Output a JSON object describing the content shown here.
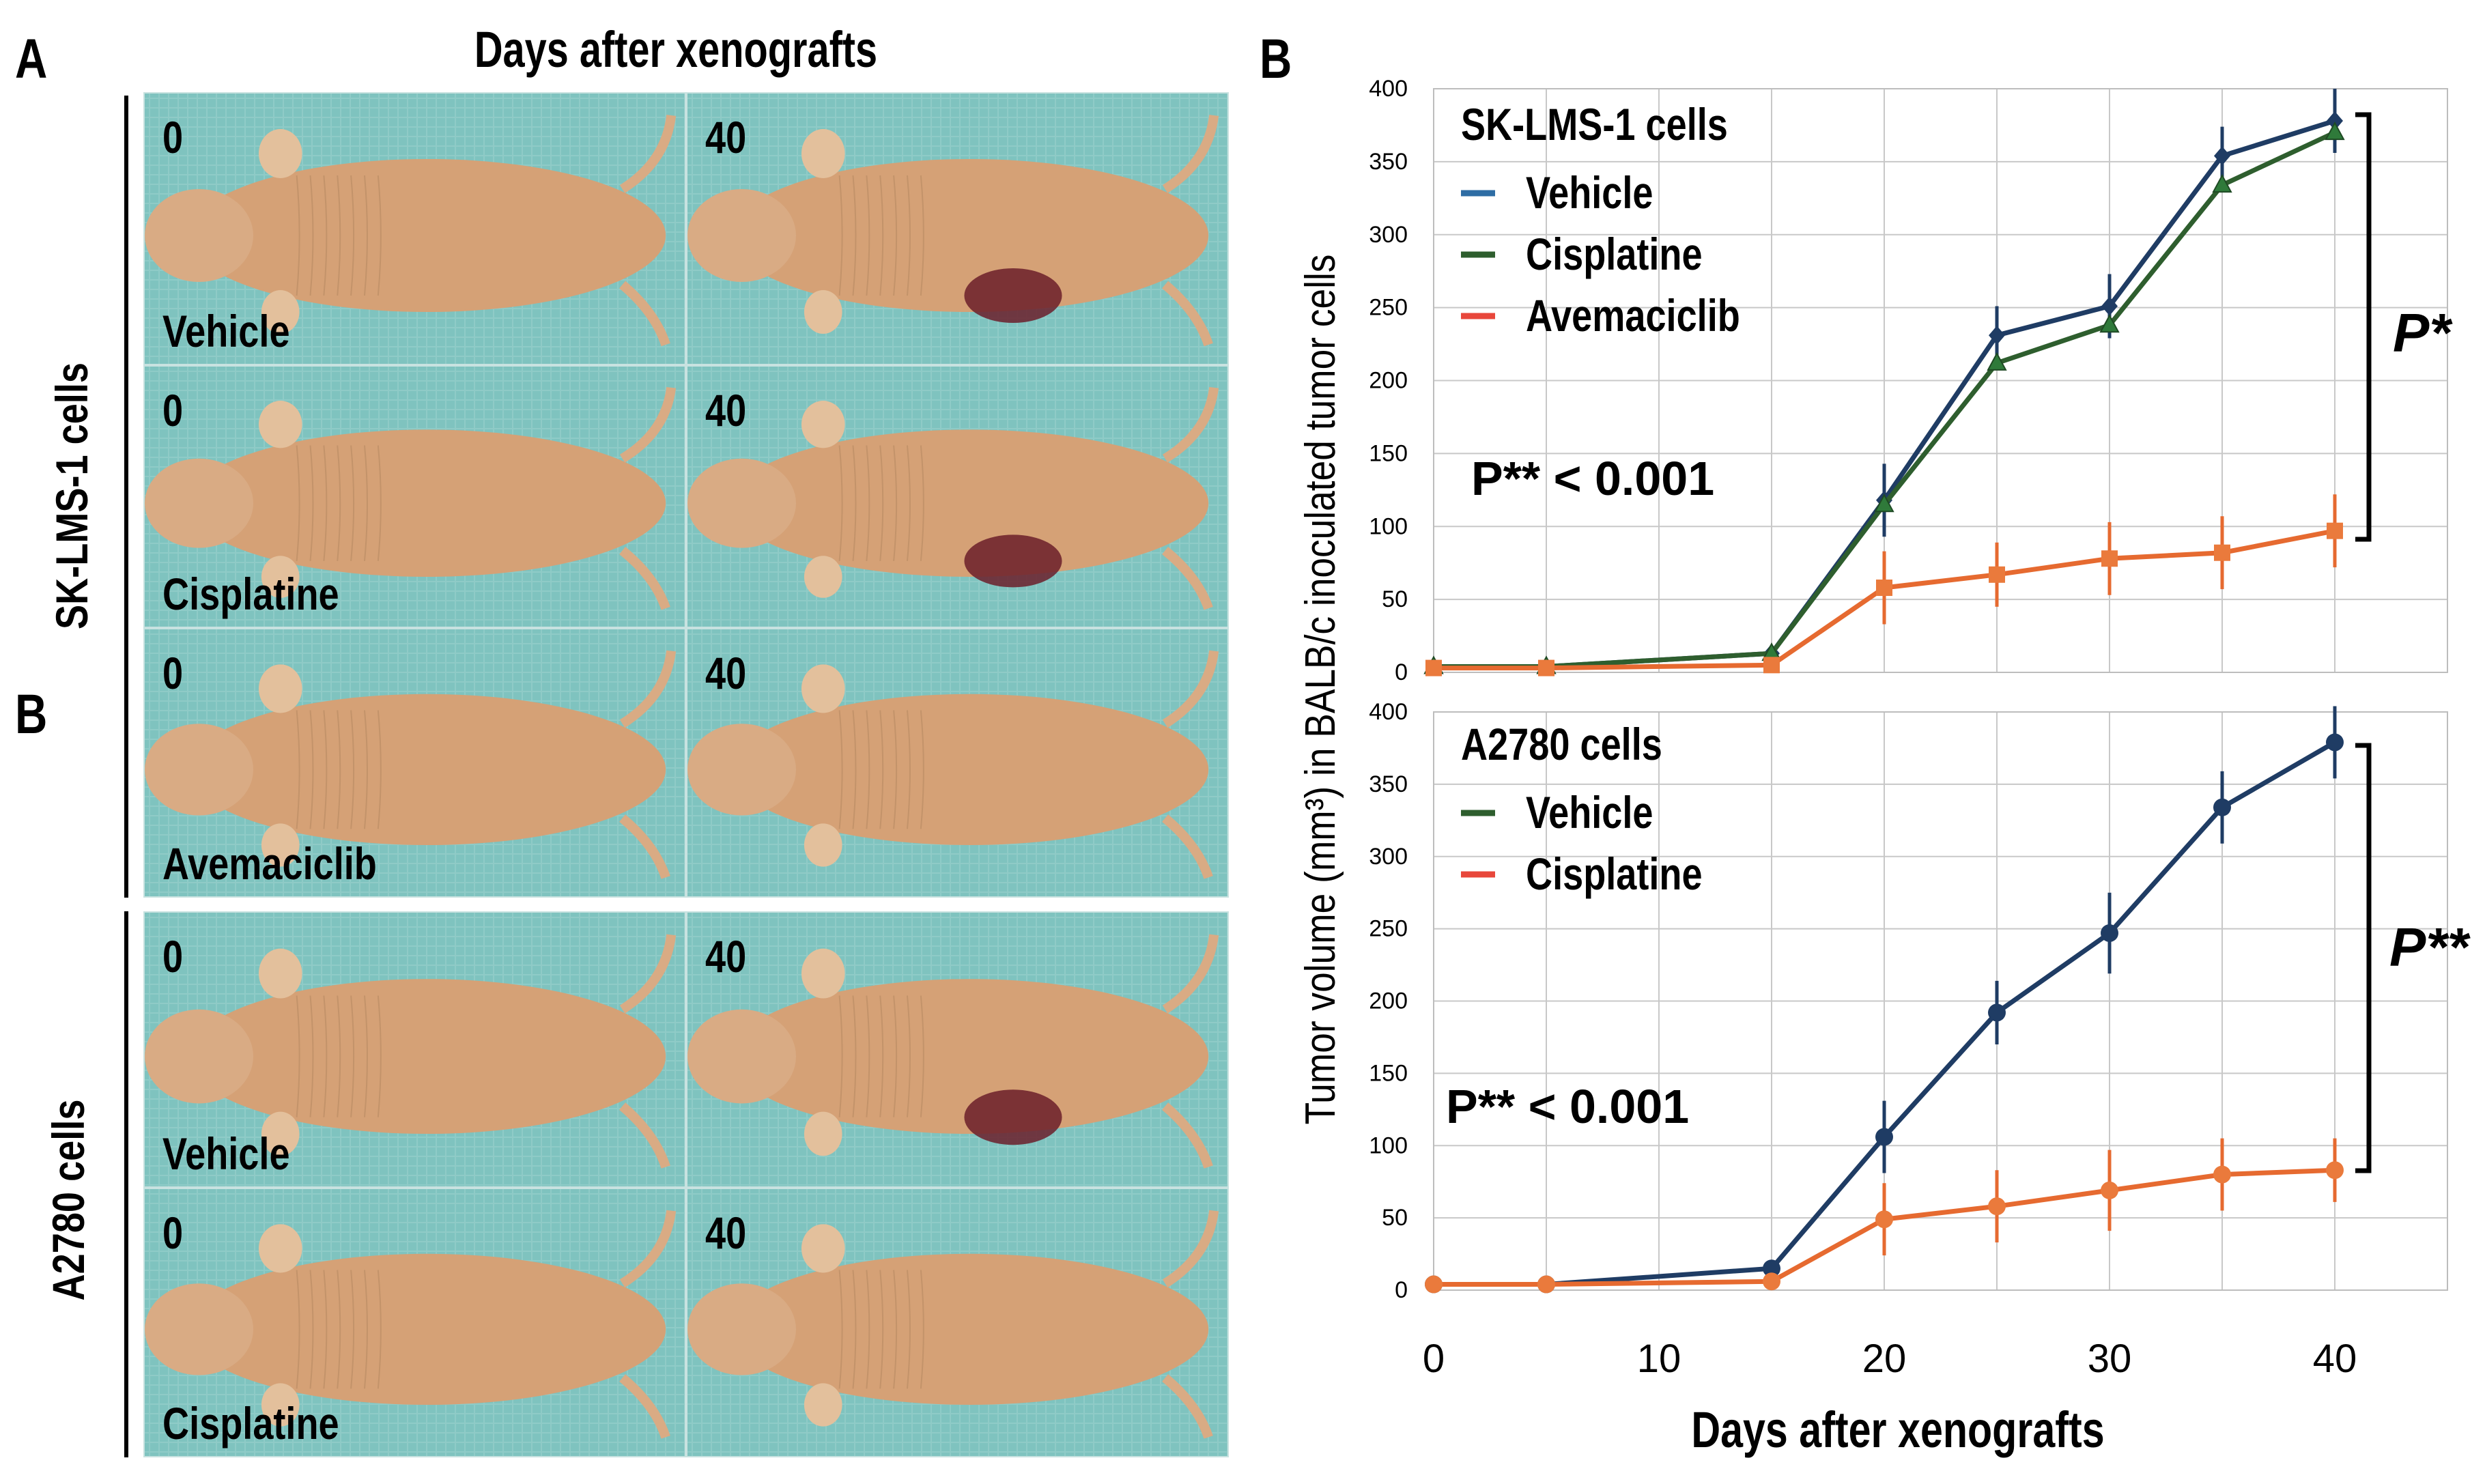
{
  "figure": {
    "panel_a_letter": "A",
    "panel_b_letter_left": "B",
    "panel_b_letter_right": "B",
    "photo_heading": "Days after xenografts",
    "group_sk": "SK-LMS-1 cells",
    "group_a2780": "A2780 cells"
  },
  "photos": [
    {
      "day": "0",
      "treatment": "Vehicle"
    },
    {
      "day": "40",
      "treatment": ""
    },
    {
      "day": "0",
      "treatment": "Cisplatine"
    },
    {
      "day": "40",
      "treatment": ""
    },
    {
      "day": "0",
      "treatment": "Avemaciclib"
    },
    {
      "day": "40",
      "treatment": ""
    },
    {
      "day": "0",
      "treatment": "Vehicle"
    },
    {
      "day": "40",
      "treatment": ""
    },
    {
      "day": "0",
      "treatment": "Cisplatine"
    },
    {
      "day": "40",
      "treatment": ""
    }
  ],
  "colors": {
    "vehicle": "#1f3c64",
    "cisplatine": "#2e5e2e",
    "avemaciclib": "#e66a30",
    "legend_vehicle": "#2e6da4",
    "legend_cisplatine": "#2e5e2e",
    "legend_red": "#e8473b",
    "grid": "#c8c8c8",
    "background_cloth": "#7fc3bf",
    "mouse_skin": "#d5a176",
    "tumor": "#6b1f2a"
  },
  "chart_data": [
    {
      "type": "line",
      "legend_title": "SK-LMS-1 cells",
      "ylabel": "Tumor volume (mm³) in BALB/c inoculated tumor cells",
      "ylim": [
        0,
        400
      ],
      "yticks": [
        "0",
        "50",
        "100",
        "150",
        "200",
        "250",
        "300",
        "350",
        "400"
      ],
      "x": [
        0,
        5,
        15,
        20,
        25,
        30,
        35,
        40
      ],
      "series": [
        {
          "name": "Vehicle",
          "values": [
            4,
            4,
            13,
            118,
            231,
            251,
            354,
            378
          ],
          "err": [
            0,
            0,
            0,
            25,
            20,
            22,
            20,
            22
          ],
          "marker": "diamond"
        },
        {
          "name": "Cisplatine",
          "values": [
            4,
            4,
            13,
            115,
            212,
            238,
            334,
            370
          ],
          "err": [
            0,
            0,
            0,
            0,
            0,
            0,
            0,
            0
          ],
          "marker": "triangle"
        },
        {
          "name": "Avemaciclib",
          "values": [
            3,
            3,
            5,
            58,
            67,
            78,
            82,
            97
          ],
          "err": [
            0,
            0,
            0,
            25,
            22,
            25,
            25,
            25
          ],
          "marker": "square"
        }
      ],
      "annotation": "P** < 0.001",
      "bracket_label": "P*",
      "grid": true,
      "legend_position": "top-left"
    },
    {
      "type": "line",
      "legend_title": "A2780 cells",
      "ylim": [
        0,
        400
      ],
      "yticks": [
        "0",
        "50",
        "100",
        "150",
        "200",
        "250",
        "300",
        "350",
        "400"
      ],
      "x": [
        0,
        5,
        15,
        20,
        25,
        30,
        35,
        40
      ],
      "xticks": [
        "0",
        "10",
        "20",
        "30",
        "40"
      ],
      "xlabel": "Days after xenografts",
      "series": [
        {
          "name": "Vehicle",
          "values": [
            4,
            4,
            15,
            106,
            192,
            247,
            334,
            379
          ],
          "err": [
            0,
            0,
            0,
            25,
            22,
            28,
            25,
            25
          ],
          "marker": "circle"
        },
        {
          "name": "Cisplatine",
          "values": [
            4,
            4,
            6,
            49,
            58,
            69,
            80,
            83
          ],
          "err": [
            0,
            0,
            0,
            25,
            25,
            28,
            25,
            22
          ],
          "marker": "circle"
        }
      ],
      "annotation": "P** < 0.001",
      "bracket_label": "P**",
      "grid": true,
      "legend_position": "top-left"
    }
  ]
}
